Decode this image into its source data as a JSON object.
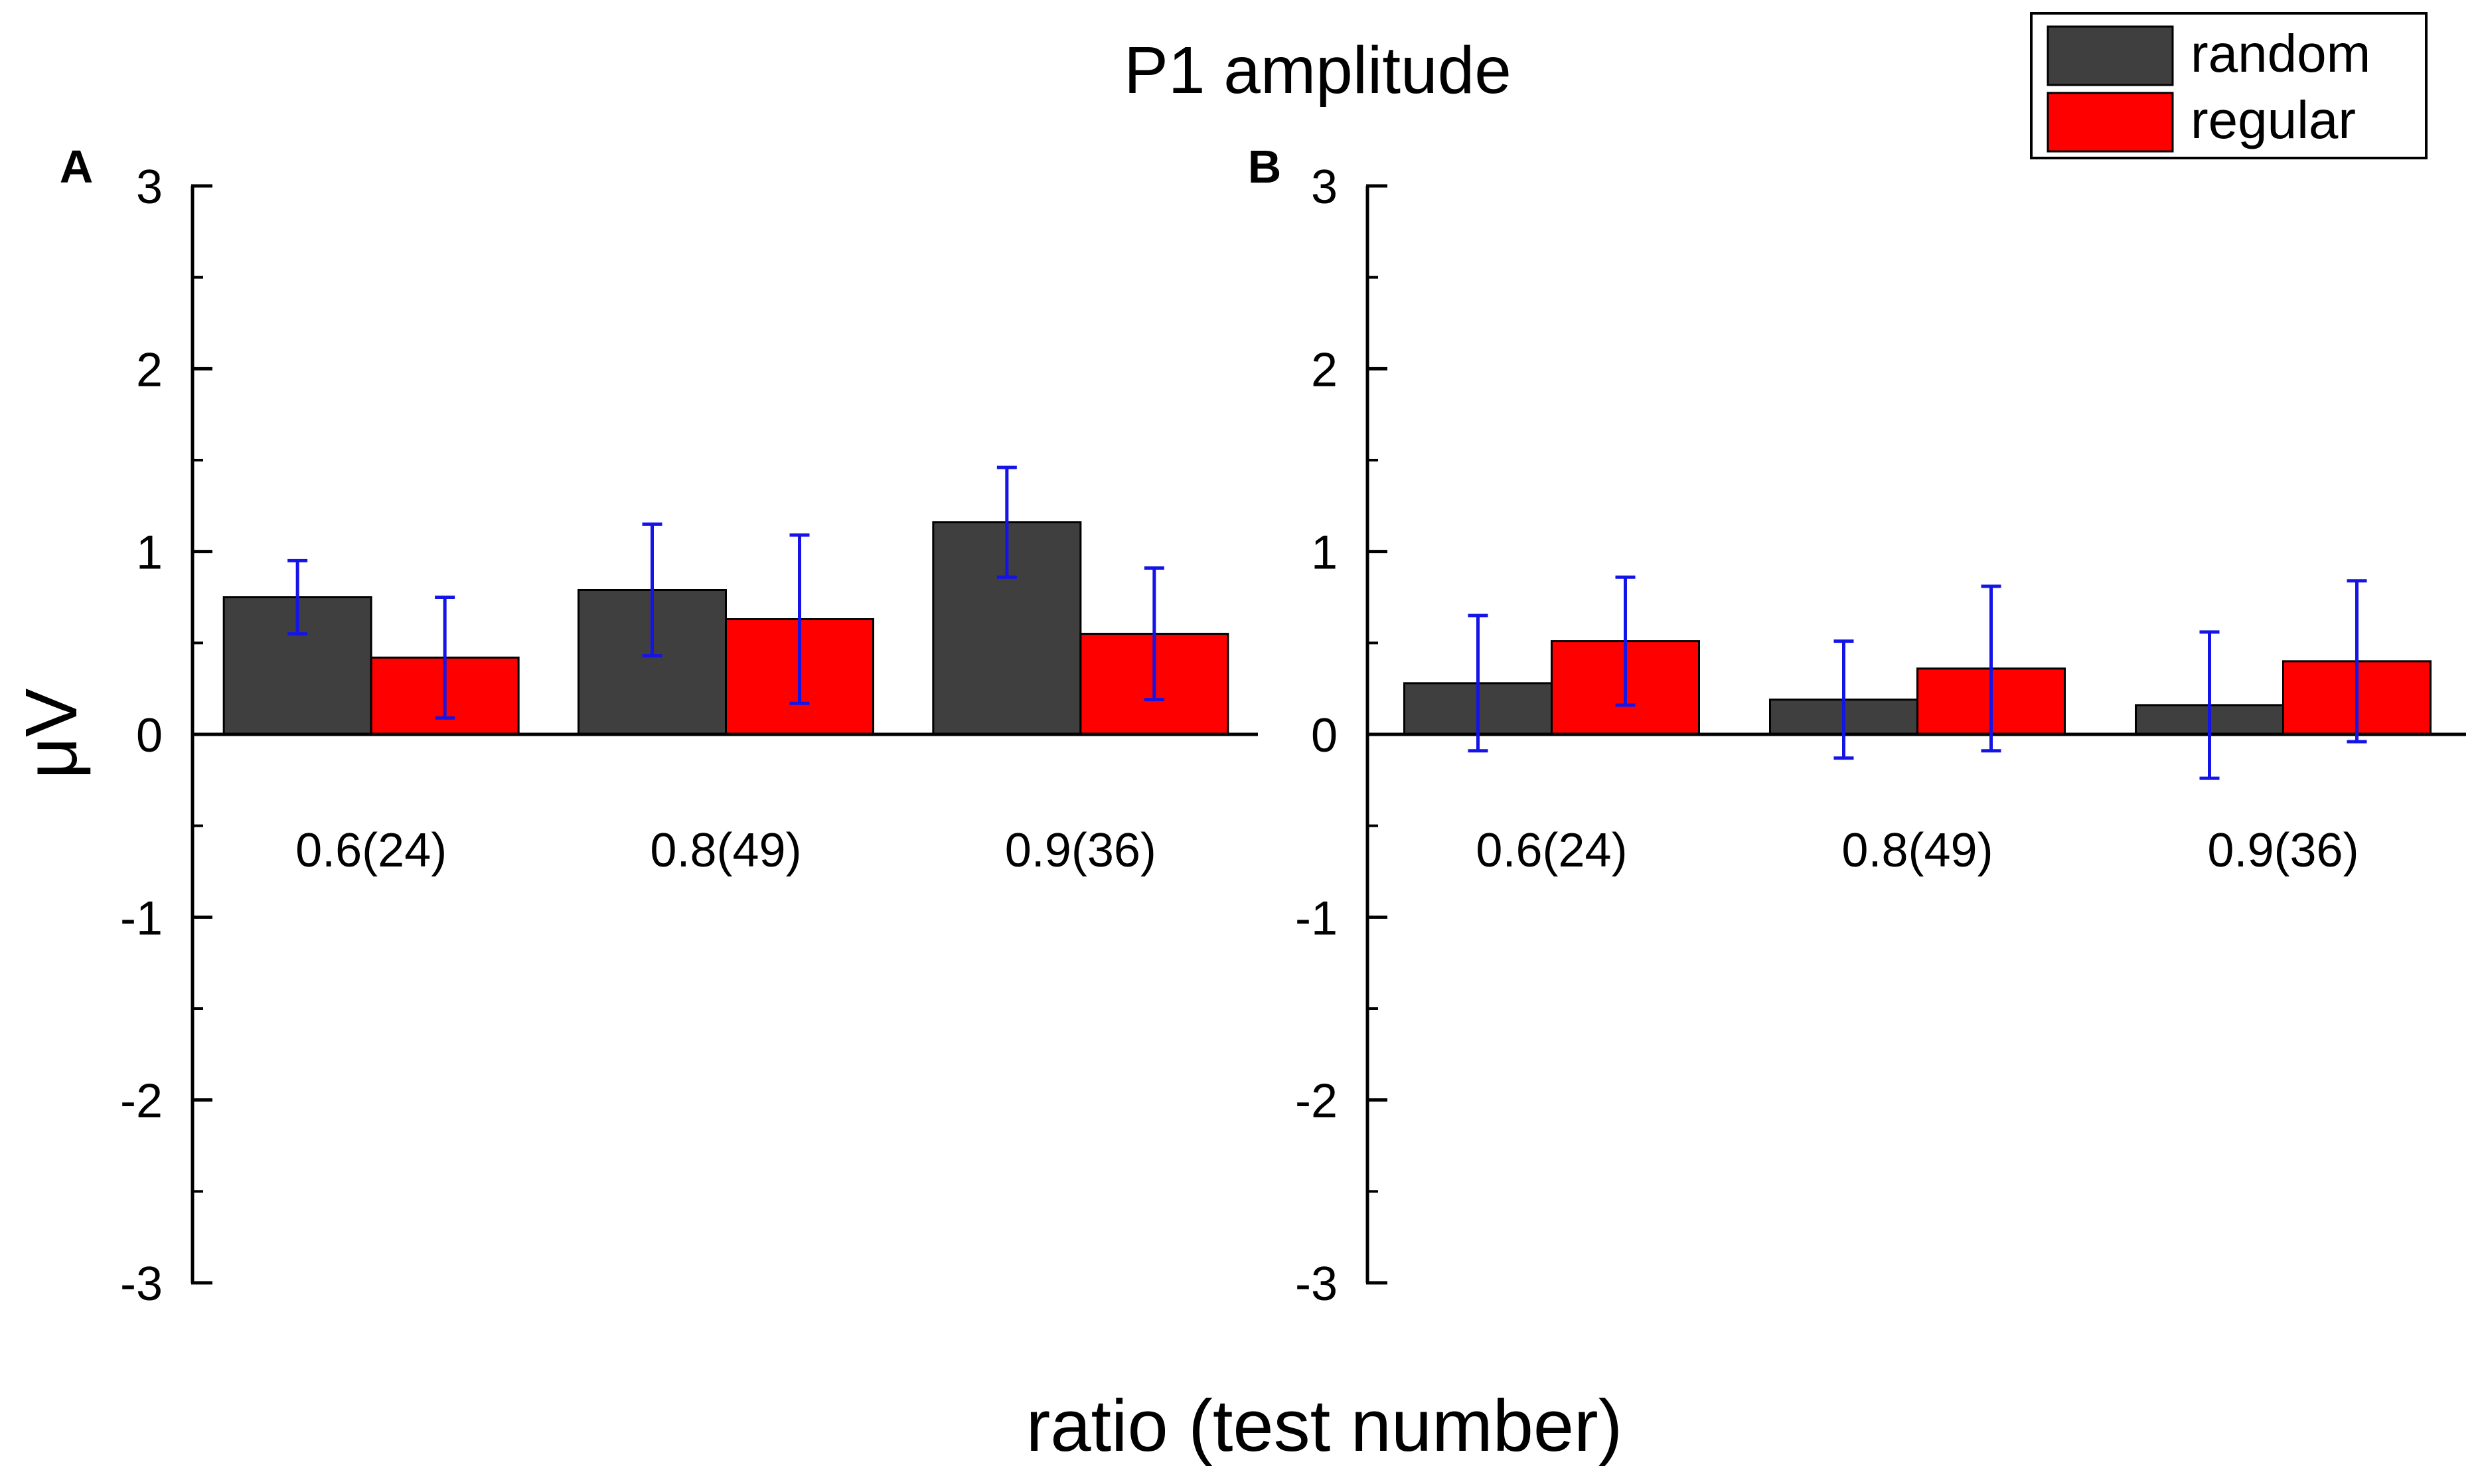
{
  "chart_data": {
    "type": "bar",
    "title": "P1 amplitude",
    "xlabel": "ratio (test number)",
    "ylabel": "μV",
    "ylim": [
      -3,
      3
    ],
    "yticks": [
      3,
      2,
      1,
      0,
      -1,
      -2,
      -3
    ],
    "legend": {
      "placement": "top-right",
      "entries": [
        {
          "name": "random",
          "color": "#3f3f3f"
        },
        {
          "name": "regular",
          "color": "#ff0000"
        }
      ]
    },
    "error_bar_color": "#1414e6",
    "categories": [
      "0.6(24)",
      "0.8(49)",
      "0.9(36)"
    ],
    "panels": [
      {
        "label": "A",
        "series": [
          {
            "name": "random",
            "color": "#3f3f3f",
            "values": [
              0.75,
              0.79,
              1.16
            ],
            "err": [
              0.2,
              0.36,
              0.3
            ]
          },
          {
            "name": "regular",
            "color": "#ff0000",
            "values": [
              0.42,
              0.63,
              0.55
            ],
            "err": [
              0.33,
              0.46,
              0.36
            ]
          }
        ]
      },
      {
        "label": "B",
        "series": [
          {
            "name": "random",
            "color": "#3f3f3f",
            "values": [
              0.28,
              0.19,
              0.16
            ],
            "err": [
              0.37,
              0.32,
              0.4
            ]
          },
          {
            "name": "regular",
            "color": "#ff0000",
            "values": [
              0.51,
              0.36,
              0.4
            ],
            "err": [
              0.35,
              0.45,
              0.44
            ]
          }
        ]
      }
    ]
  }
}
